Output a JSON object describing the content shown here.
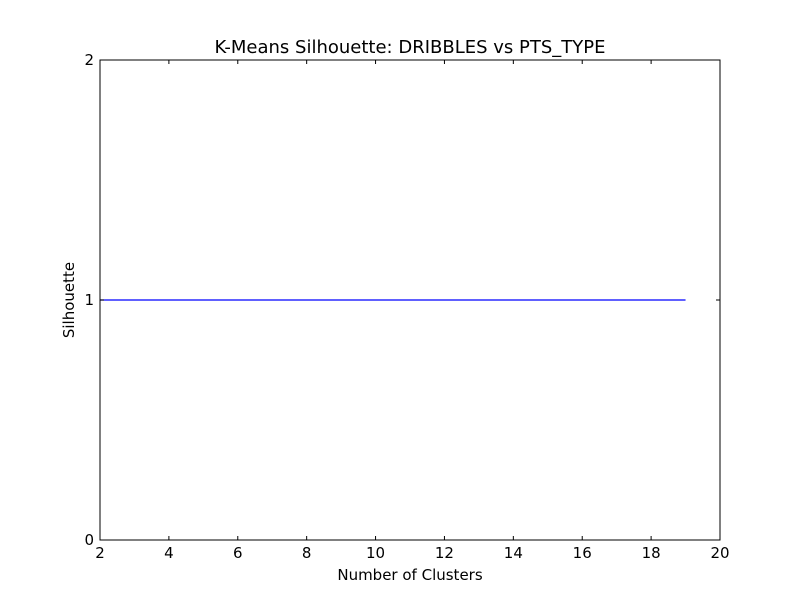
{
  "chart_data": {
    "type": "line",
    "title": "K-Means Silhouette: DRIBBLES vs PTS_TYPE",
    "xlabel": "Number of Clusters",
    "ylabel": "Silhouette",
    "xlim": [
      2,
      20
    ],
    "ylim": [
      0,
      2
    ],
    "xticks": [
      2,
      4,
      6,
      8,
      10,
      12,
      14,
      16,
      18,
      20
    ],
    "yticks": [
      0,
      1,
      2
    ],
    "grid": false,
    "legend": "none",
    "series": [
      {
        "color": "#0000ff",
        "x": [
          2,
          3,
          4,
          5,
          6,
          7,
          8,
          9,
          10,
          11,
          12,
          13,
          14,
          15,
          16,
          17,
          18,
          19
        ],
        "y": [
          1,
          1,
          1,
          1,
          1,
          1,
          1,
          1,
          1,
          1,
          1,
          1,
          1,
          1,
          1,
          1,
          1,
          1
        ]
      }
    ]
  }
}
